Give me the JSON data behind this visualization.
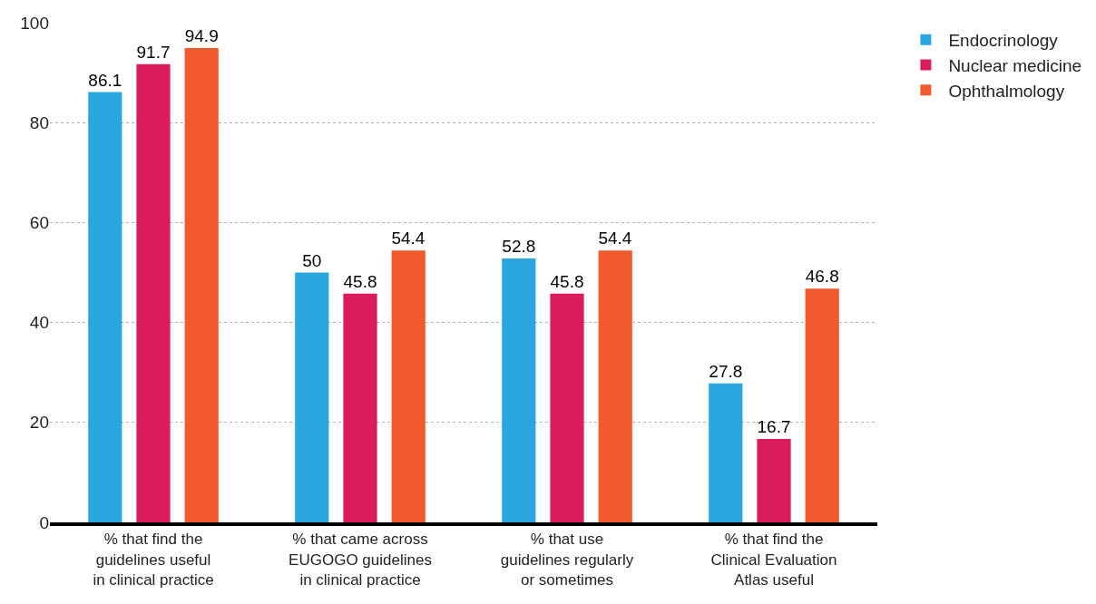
{
  "chart_data": {
    "type": "bar",
    "categories": [
      "% that find the\nguidelines useful\nin clinical practice",
      "% that came across\nEUGOGO guidelines\nin clinical practice",
      "% that use\nguidelines regularly\nor sometimes",
      "% that find the\nClinical Evaluation\nAtlas useful"
    ],
    "series": [
      {
        "name": "Endocrinology",
        "color": "#29a8e0",
        "values": [
          86.1,
          50,
          52.8,
          27.8
        ]
      },
      {
        "name": "Nuclear medicine",
        "color": "#d91c5c",
        "values": [
          91.7,
          45.8,
          45.8,
          16.7
        ]
      },
      {
        "name": "Ophthalmology",
        "color": "#f15a2c",
        "values": [
          94.9,
          54.4,
          54.4,
          46.8
        ]
      }
    ],
    "ylim": [
      0,
      100
    ],
    "yticks": [
      0,
      20,
      40,
      60,
      80,
      100
    ],
    "grid": "y",
    "legend": "top right",
    "data_labels": true
  }
}
